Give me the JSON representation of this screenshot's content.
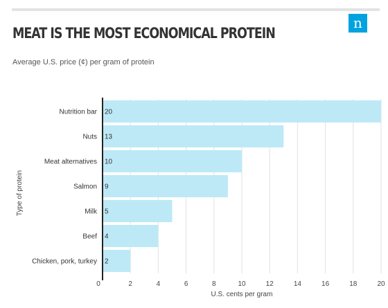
{
  "header": {
    "title": "MEAT IS THE MOST ECONOMICAL PROTEIN",
    "subtitle": "Average U.S. price (¢) per gram of protein",
    "logo_letter": "n"
  },
  "colors": {
    "bar": "#bde9f7",
    "axis": "#222222",
    "grid": "#e2e2e2",
    "logo": "#00a3e0",
    "rule": "#e3e3e3"
  },
  "chart_data": {
    "type": "bar",
    "orientation": "horizontal",
    "title": "MEAT IS THE MOST ECONOMICAL PROTEIN",
    "subtitle": "Average U.S. price (¢) per gram of protein",
    "categories": [
      "Nutrition bar",
      "Nuts",
      "Meat alternatives",
      "Salmon",
      "Milk",
      "Beef",
      "Chicken, pork, turkey"
    ],
    "values": [
      20,
      13,
      10,
      9,
      5,
      4,
      2
    ],
    "data_labels": [
      "20",
      "13",
      "10",
      "9",
      "5",
      "4",
      "2"
    ],
    "xlabel": "U.S. cents per gram",
    "ylabel": "Type of protein",
    "xlim": [
      0,
      20
    ],
    "xticks": [
      0,
      2,
      4,
      6,
      8,
      10,
      12,
      14,
      16,
      18,
      20
    ],
    "grid": true,
    "legend": "none"
  }
}
